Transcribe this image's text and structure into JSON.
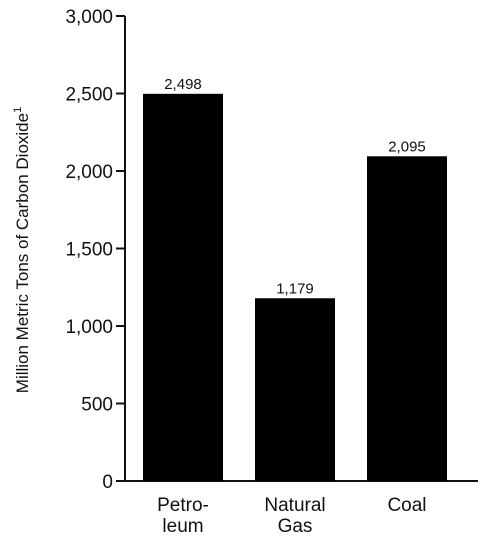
{
  "chart_data": {
    "type": "bar",
    "categories": [
      [
        "Petro-",
        "leum"
      ],
      [
        "Natural",
        "Gas"
      ],
      [
        "Coal"
      ]
    ],
    "values": [
      2498,
      1179,
      2095
    ],
    "data_labels": [
      "2,498",
      "1,179",
      "2,095"
    ],
    "ylabel": "Million Metric Tons of Carbon Dioxide",
    "ylabel_superscript": "1",
    "ylim": [
      0,
      3000
    ],
    "yticks": [
      0,
      500,
      1000,
      1500,
      2000,
      2500,
      3000
    ],
    "ytick_labels": [
      "0",
      "500",
      "1,000",
      "1,500",
      "2,000",
      "2,500",
      "3,000"
    ],
    "grid": false,
    "bar_color": "#000000"
  }
}
